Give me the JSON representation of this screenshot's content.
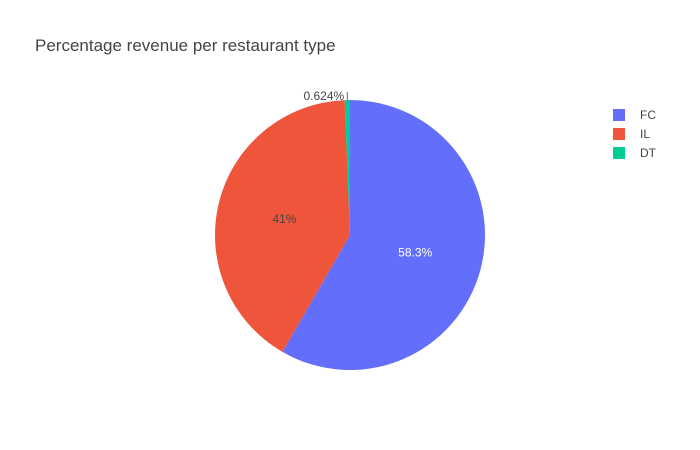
{
  "chart_data": {
    "type": "pie",
    "title": "Percentage revenue per restaurant type",
    "slices": [
      {
        "label": "FC",
        "value": 58.3,
        "text": "58.3%",
        "color": "#636efa",
        "text_color": "#ffffff"
      },
      {
        "label": "IL",
        "value": 41.0,
        "text": "41%",
        "color": "#ef553b",
        "text_color": "#444444"
      },
      {
        "label": "DT",
        "value": 0.624,
        "text": "0.624%",
        "color": "#00cc96",
        "text_color": "#444444"
      }
    ],
    "legend": {
      "placement": "top-right",
      "items": [
        "FC",
        "IL",
        "DT"
      ]
    },
    "direction": "clockwise",
    "start": "top"
  }
}
